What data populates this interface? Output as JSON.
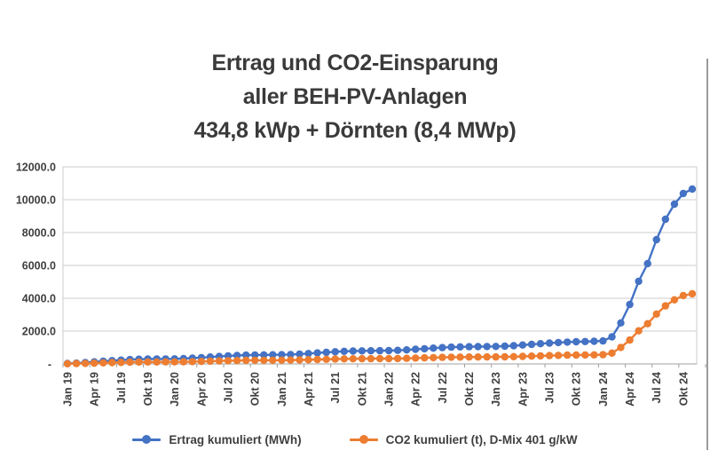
{
  "title": {
    "line1": "Ertrag und CO2-Einsparung",
    "line2": "aller BEH-PV-Anlagen",
    "line3": "434,8 kWp + Dörnten (8,4 MWp)"
  },
  "legend": {
    "items": [
      {
        "label": "Ertrag kumuliert (MWh)",
        "color_key": "ertrag_blue"
      },
      {
        "label": "CO2 kumuliert (t), D-Mix 401 g/kW",
        "color_key": "co2_orange"
      }
    ]
  },
  "colors": {
    "ertrag_blue": "#4472c4",
    "co2_orange": "#ed7d31",
    "grid_line": "#cdcdcd",
    "axis_line": "#b3b3b3",
    "tick_mark": "#9f9f9f",
    "axis_text": "#3f3f3f",
    "title_text": "#3a3a3a",
    "edge_line": "#9b9b9b"
  },
  "chart_data": {
    "type": "line",
    "title": "Ertrag und CO2-Einsparung aller BEH-PV-Anlagen 434,8 kWp + Dörnten (8,4 MWp)",
    "x_unit": "month",
    "x_range": "Jan 2019 - Nov 2024",
    "points_per_series": 71,
    "grid": "horizontal",
    "legend_position": "bottom",
    "ylim": [
      0,
      12000
    ],
    "y_ticks": [
      {
        "value": 12000,
        "label": "12000.0"
      },
      {
        "value": 10000,
        "label": "10000.0"
      },
      {
        "value": 8000,
        "label": "8000.0"
      },
      {
        "value": 6000,
        "label": "6000.0"
      },
      {
        "value": 4000,
        "label": "4000.0"
      },
      {
        "value": 2000,
        "label": "2000.0"
      },
      {
        "value": 0,
        "label": "-"
      }
    ],
    "x_tick_labels": [
      "Jan 19",
      "Apr 19",
      "Jul 19",
      "Okt 19",
      "Jan 20",
      "Apr 20",
      "Jul 20",
      "Okt 20",
      "Jan 21",
      "Apr 21",
      "Jul 21",
      "Okt 21",
      "Jan 22",
      "Apr 22",
      "Jul 22",
      "Okt 22",
      "Jan 23",
      "Apr 23",
      "Jul 23",
      "Okt 23",
      "Jan 24",
      "Apr 24",
      "Jul 24",
      "Okt 24"
    ],
    "x_tick_every_n_points": 3,
    "series": [
      {
        "name": "Ertrag kumuliert (MWh)",
        "color_key": "ertrag_blue",
        "values": [
          25,
          50,
          85,
          125,
          165,
          200,
          235,
          265,
          285,
          295,
          300,
          305,
          310,
          325,
          350,
          385,
          420,
          455,
          490,
          515,
          535,
          545,
          550,
          555,
          560,
          575,
          600,
          635,
          670,
          705,
          740,
          765,
          785,
          795,
          800,
          805,
          810,
          825,
          855,
          890,
          925,
          960,
          995,
          1020,
          1040,
          1050,
          1055,
          1060,
          1065,
          1080,
          1110,
          1150,
          1190,
          1230,
          1270,
          1300,
          1330,
          1350,
          1360,
          1380,
          1400,
          1650,
          2500,
          3620,
          5030,
          6110,
          7570,
          8810,
          9730,
          10380,
          10650
        ]
      },
      {
        "name": "CO2 kumuliert (t), D-Mix 401 g/kW",
        "color_key": "co2_orange",
        "values": [
          10,
          20,
          34,
          50,
          66,
          80,
          94,
          106,
          114,
          118,
          120,
          122,
          124,
          130,
          140,
          154,
          168,
          182,
          196,
          207,
          215,
          219,
          221,
          223,
          225,
          231,
          241,
          255,
          269,
          283,
          297,
          307,
          315,
          319,
          321,
          323,
          325,
          331,
          343,
          357,
          371,
          385,
          399,
          409,
          417,
          421,
          423,
          425,
          427,
          433,
          445,
          461,
          477,
          493,
          509,
          521,
          533,
          541,
          545,
          553,
          561,
          662,
          1003,
          1452,
          2017,
          2450,
          3036,
          3533,
          3902,
          4162,
          4271
        ]
      }
    ]
  }
}
